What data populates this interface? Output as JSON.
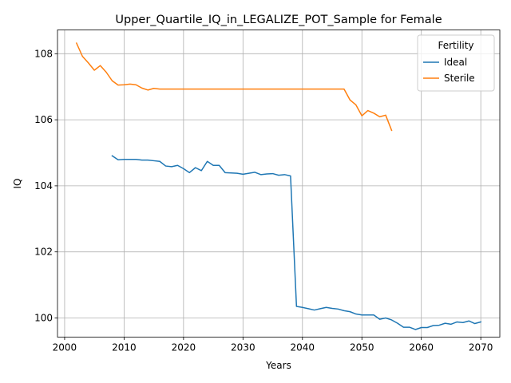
{
  "chart_data": {
    "type": "line",
    "title": "Upper_Quartile_IQ_in_LEGALIZE_POT_Sample for Female",
    "xlabel": "Years",
    "ylabel": "IQ",
    "xlim": [
      1998.8,
      2073.2
    ],
    "ylim": [
      99.42,
      108.72
    ],
    "xticks": [
      2000,
      2010,
      2020,
      2030,
      2040,
      2050,
      2060,
      2070
    ],
    "yticks": [
      100,
      102,
      104,
      106,
      108
    ],
    "grid": true,
    "legend": {
      "title": "Fertility",
      "placement": "top-right"
    },
    "series": [
      {
        "name": "Ideal",
        "color": "#1f77b4",
        "x": [
          2008,
          2009,
          2010,
          2011,
          2012,
          2013,
          2014,
          2015,
          2016,
          2017,
          2018,
          2019,
          2020,
          2021,
          2022,
          2023,
          2024,
          2025,
          2026,
          2027,
          2028,
          2029,
          2030,
          2031,
          2032,
          2033,
          2034,
          2035,
          2036,
          2037,
          2038,
          2039,
          2040,
          2041,
          2042,
          2043,
          2044,
          2045,
          2046,
          2047,
          2048,
          2049,
          2050,
          2051,
          2052,
          2053,
          2054,
          2055,
          2056,
          2057,
          2058,
          2059,
          2060,
          2061,
          2062,
          2063,
          2064,
          2065,
          2066,
          2067,
          2068,
          2069,
          2070
        ],
        "values": [
          104.91,
          104.79,
          104.8,
          104.8,
          104.8,
          104.78,
          104.78,
          104.76,
          104.74,
          104.6,
          104.58,
          104.62,
          104.52,
          104.4,
          104.55,
          104.46,
          104.74,
          104.62,
          104.62,
          104.4,
          104.39,
          104.38,
          104.35,
          104.38,
          104.41,
          104.34,
          104.36,
          104.37,
          104.32,
          104.34,
          104.3,
          100.35,
          100.32,
          100.28,
          100.24,
          100.28,
          100.32,
          100.29,
          100.27,
          100.22,
          100.19,
          100.12,
          100.09,
          100.09,
          100.09,
          99.96,
          100.0,
          99.94,
          99.84,
          99.72,
          99.72,
          99.65,
          99.71,
          99.71,
          99.77,
          99.78,
          99.84,
          99.81,
          99.88,
          99.86,
          99.91,
          99.83,
          99.88
        ]
      },
      {
        "name": "Sterile",
        "color": "#ff7f0e",
        "x": [
          2002,
          2003,
          2004,
          2005,
          2006,
          2007,
          2008,
          2009,
          2010,
          2011,
          2012,
          2013,
          2014,
          2015,
          2016,
          2017,
          2018,
          2019,
          2020,
          2021,
          2022,
          2023,
          2024,
          2025,
          2026,
          2027,
          2028,
          2029,
          2030,
          2031,
          2032,
          2033,
          2034,
          2035,
          2036,
          2037,
          2038,
          2039,
          2040,
          2041,
          2042,
          2043,
          2044,
          2045,
          2046,
          2047,
          2048,
          2049,
          2050,
          2051,
          2052,
          2053,
          2054,
          2055
        ],
        "values": [
          108.32,
          107.92,
          107.72,
          107.5,
          107.64,
          107.44,
          107.18,
          107.05,
          107.06,
          107.08,
          107.06,
          106.96,
          106.9,
          106.95,
          106.93,
          106.93,
          106.93,
          106.93,
          106.93,
          106.93,
          106.93,
          106.93,
          106.93,
          106.93,
          106.93,
          106.93,
          106.93,
          106.93,
          106.93,
          106.93,
          106.93,
          106.93,
          106.93,
          106.93,
          106.93,
          106.93,
          106.93,
          106.93,
          106.93,
          106.93,
          106.93,
          106.93,
          106.93,
          106.93,
          106.93,
          106.93,
          106.6,
          106.45,
          106.12,
          106.28,
          106.2,
          106.09,
          106.14,
          105.68
        ]
      }
    ]
  }
}
